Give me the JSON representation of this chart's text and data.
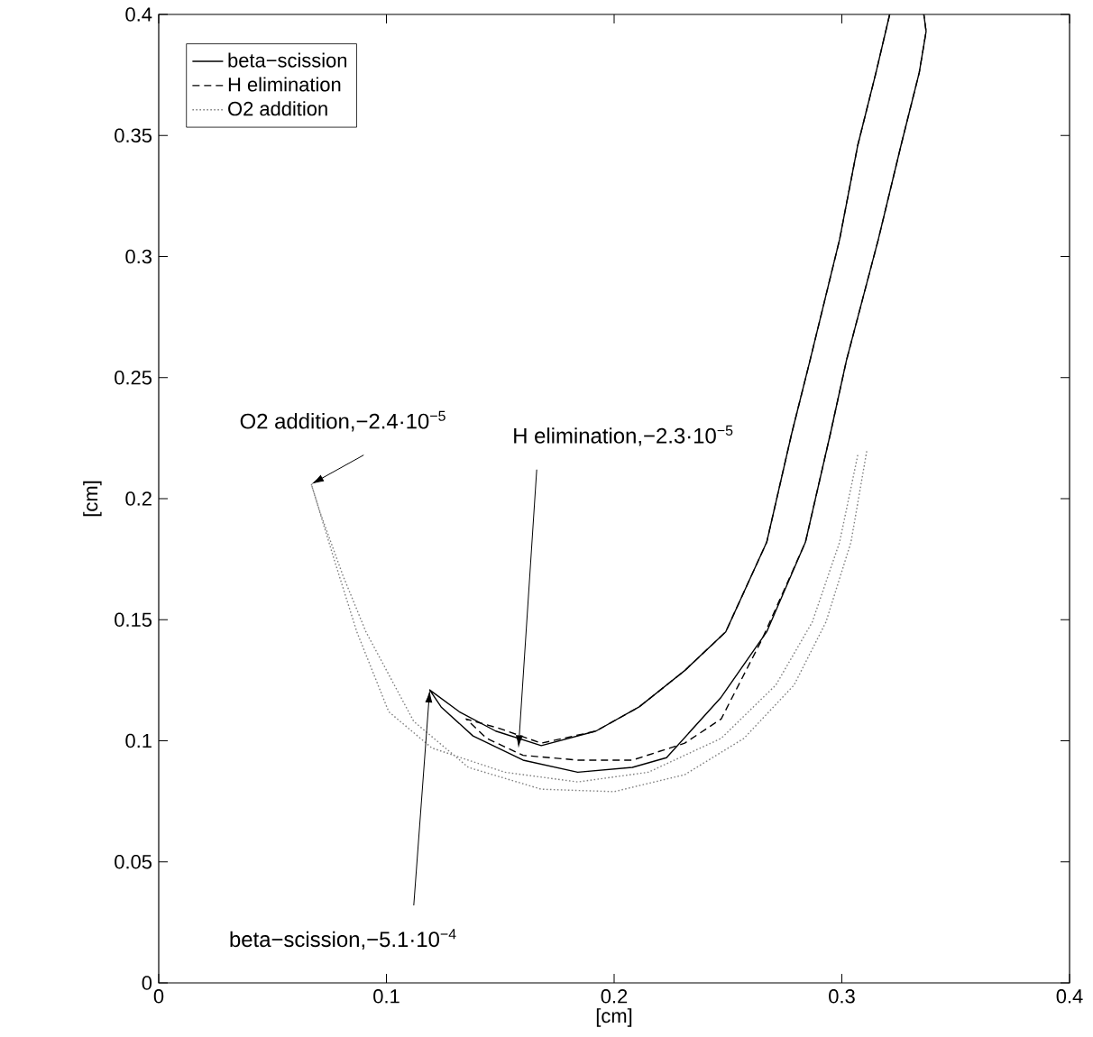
{
  "chart_data": {
    "type": "line",
    "xlabel": "[cm]",
    "ylabel": "[cm]",
    "xlim": [
      0,
      0.4
    ],
    "ylim": [
      0,
      0.4
    ],
    "xticks": [
      0,
      0.1,
      0.2,
      0.3,
      0.4
    ],
    "yticks": [
      0,
      0.05,
      0.1,
      0.15,
      0.2,
      0.25,
      0.3,
      0.35,
      0.4
    ],
    "grid": false,
    "legend": "top left",
    "marker": "none",
    "series": [
      {
        "name": "beta−scission",
        "color": "#000000",
        "line_style": "solid",
        "x": [
          0.321,
          0.315,
          0.307,
          0.299,
          0.286,
          0.278,
          0.267,
          0.249,
          0.231,
          0.211,
          0.192,
          0.168,
          0.148,
          0.132,
          0.119,
          0.124,
          0.138,
          0.16,
          0.184,
          0.208,
          0.223,
          0.247,
          0.267,
          0.284,
          0.295,
          0.302,
          0.316,
          0.326,
          0.334,
          0.337,
          0.336
        ],
        "values": [
          0.4,
          0.376,
          0.346,
          0.307,
          0.257,
          0.227,
          0.182,
          0.145,
          0.129,
          0.114,
          0.104,
          0.098,
          0.104,
          0.112,
          0.121,
          0.114,
          0.102,
          0.092,
          0.087,
          0.089,
          0.093,
          0.118,
          0.145,
          0.182,
          0.227,
          0.257,
          0.307,
          0.346,
          0.376,
          0.393,
          0.4
        ]
      },
      {
        "name": "H elimination",
        "color": "#000000",
        "line_style": "dashed",
        "x": [
          0.321,
          0.315,
          0.307,
          0.299,
          0.286,
          0.278,
          0.267,
          0.249,
          0.231,
          0.211,
          0.192,
          0.168,
          0.15,
          0.135,
          0.144,
          0.16,
          0.184,
          0.208,
          0.231,
          0.247,
          0.265,
          0.284,
          0.295,
          0.302,
          0.316,
          0.326,
          0.334,
          0.337,
          0.336
        ],
        "values": [
          0.4,
          0.376,
          0.346,
          0.307,
          0.257,
          0.227,
          0.182,
          0.145,
          0.129,
          0.114,
          0.104,
          0.099,
          0.105,
          0.109,
          0.101,
          0.094,
          0.092,
          0.092,
          0.099,
          0.109,
          0.142,
          0.182,
          0.227,
          0.257,
          0.307,
          0.346,
          0.376,
          0.393,
          0.4
        ]
      },
      {
        "name": "O2 addition",
        "color": "#808080",
        "line_style": "dotted",
        "x": [
          0.307,
          0.299,
          0.287,
          0.271,
          0.247,
          0.215,
          0.184,
          0.152,
          0.12,
          0.101,
          0.087,
          0.077,
          0.067,
          0.071,
          0.081,
          0.091,
          0.112,
          0.136,
          0.168,
          0.2,
          0.231,
          0.257,
          0.279,
          0.293,
          0.304,
          0.311
        ],
        "values": [
          0.218,
          0.182,
          0.149,
          0.123,
          0.101,
          0.087,
          0.083,
          0.087,
          0.097,
          0.112,
          0.145,
          0.175,
          0.206,
          0.194,
          0.168,
          0.145,
          0.108,
          0.089,
          0.08,
          0.079,
          0.086,
          0.101,
          0.123,
          0.149,
          0.182,
          0.22
        ]
      }
    ],
    "annotations": [
      {
        "text": "O2 addition,−2.4·10$^{−5}$",
        "x": 0.067,
        "y": 0.206
      },
      {
        "text": "H elimination,−2.3·10$^{−5}$",
        "x": 0.158,
        "y": 0.097
      },
      {
        "text": "beta−scission,−5.1·10$^{−4}$",
        "x": 0.119,
        "y": 0.121
      }
    ]
  }
}
